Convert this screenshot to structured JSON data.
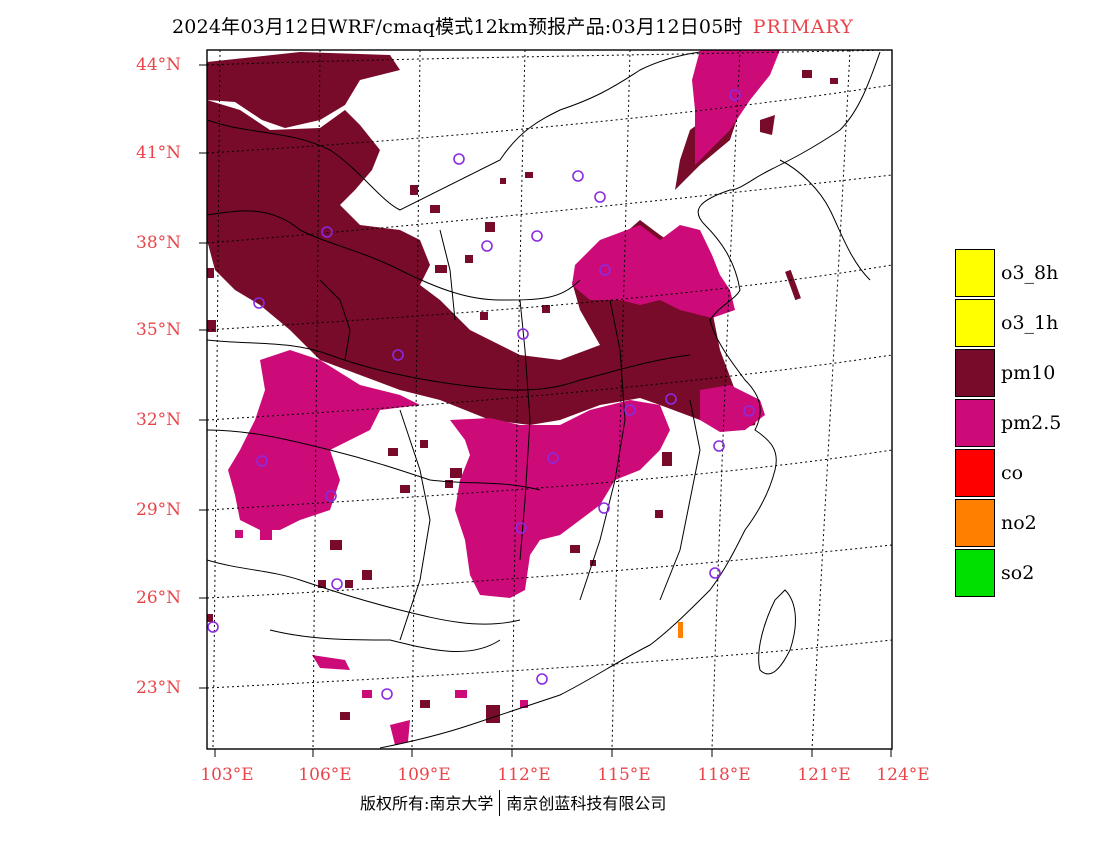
{
  "title": {
    "main": "2024年03月12日WRF/cmaq模式12km预报产品:03月12日05时",
    "tag": "PRIMARY"
  },
  "latitude_labels": [
    "44°N",
    "41°N",
    "38°N",
    "35°N",
    "32°N",
    "29°N",
    "26°N",
    "23°N"
  ],
  "longitude_labels": [
    "103°E",
    "106°E",
    "109°E",
    "112°E",
    "115°E",
    "118°E",
    "121°E",
    "124°E"
  ],
  "legend": [
    {
      "label": "o3_8h",
      "color": "#ffff00"
    },
    {
      "label": "o3_1h",
      "color": "#ffff00"
    },
    {
      "label": "pm10",
      "color": "#780a2a"
    },
    {
      "label": "pm2.5",
      "color": "#cc0a78"
    },
    {
      "label": "co",
      "color": "#ff0000"
    },
    {
      "label": "no2",
      "color": "#ff7f00"
    },
    {
      "label": "so2",
      "color": "#00e000"
    }
  ],
  "footer": {
    "left": "版权所有:南京大学",
    "right": "南京创蓝科技有限公司"
  },
  "colors": {
    "pm10": "#780a2a",
    "pm25": "#cc0a78",
    "station": "#8a2be2",
    "label": "#e8454a"
  }
}
